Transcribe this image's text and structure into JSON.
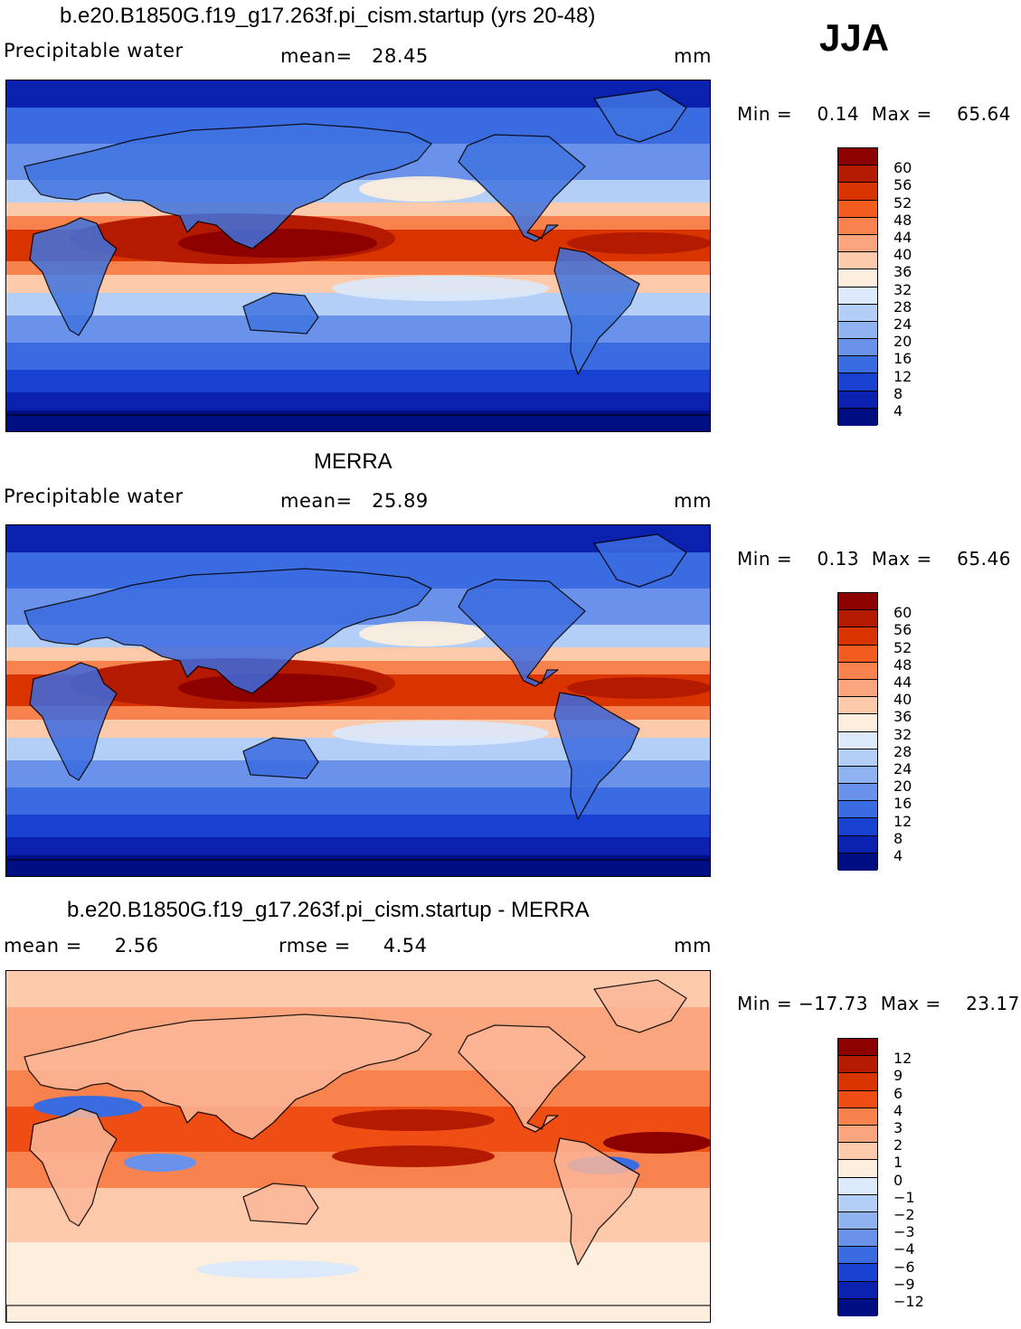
{
  "season": "JJA",
  "panels": [
    {
      "id": "model",
      "title": "b.e20.B1850G.f19_g17.263f.pi_cism.startup (yrs 20-48)",
      "left_label": "Precipitable water",
      "center_label": "mean=   28.45",
      "units": "mm",
      "minmax": "Min =    0.14  Max =    65.64",
      "colorbar": {
        "levels": [
          "60",
          "56",
          "52",
          "48",
          "44",
          "40",
          "36",
          "32",
          "28",
          "24",
          "20",
          "16",
          "12",
          "8",
          "4"
        ],
        "colors": [
          "#8c0000",
          "#b31a00",
          "#d93300",
          "#f25c1f",
          "#f7824d",
          "#fba57e",
          "#fdc9ab",
          "#fdeedd",
          "#dbe9fb",
          "#b4cff7",
          "#8fb2f1",
          "#6a92ea",
          "#3b6be0",
          "#1840d1",
          "#0a21b0",
          "#000e84"
        ]
      }
    },
    {
      "id": "obs",
      "title": "MERRA",
      "left_label": "Precipitable water",
      "center_label": "mean=   25.89",
      "units": "mm",
      "minmax": "Min =    0.13  Max =    65.46",
      "colorbar": {
        "levels": [
          "60",
          "56",
          "52",
          "48",
          "44",
          "40",
          "36",
          "32",
          "28",
          "24",
          "20",
          "16",
          "12",
          "8",
          "4"
        ],
        "colors": [
          "#8c0000",
          "#b31a00",
          "#d93300",
          "#f25c1f",
          "#f7824d",
          "#fba57e",
          "#fdc9ab",
          "#fdeedd",
          "#dbe9fb",
          "#b4cff7",
          "#8fb2f1",
          "#6a92ea",
          "#3b6be0",
          "#1840d1",
          "#0a21b0",
          "#000e84"
        ]
      }
    },
    {
      "id": "diff",
      "title": "b.e20.B1850G.f19_g17.263f.pi_cism.startup - MERRA",
      "left_label": "mean =     2.56",
      "center_label": "rmse =     4.54",
      "units": "mm",
      "minmax": "Min = −17.73  Max =    23.17",
      "colorbar": {
        "levels": [
          "12",
          "9",
          "6",
          "4",
          "3",
          "2",
          "1",
          "0",
          "−1",
          "−2",
          "−3",
          "−4",
          "−6",
          "−9",
          "−12"
        ],
        "colors": [
          "#8c0000",
          "#b31a00",
          "#d93300",
          "#ee4d14",
          "#f7824d",
          "#fba57e",
          "#fdc9ab",
          "#fdeedd",
          "#dbe9fb",
          "#b4cff7",
          "#8fb2f1",
          "#6a92ea",
          "#3b6be0",
          "#1840d1",
          "#0a21b0",
          "#000e84"
        ]
      }
    }
  ]
}
